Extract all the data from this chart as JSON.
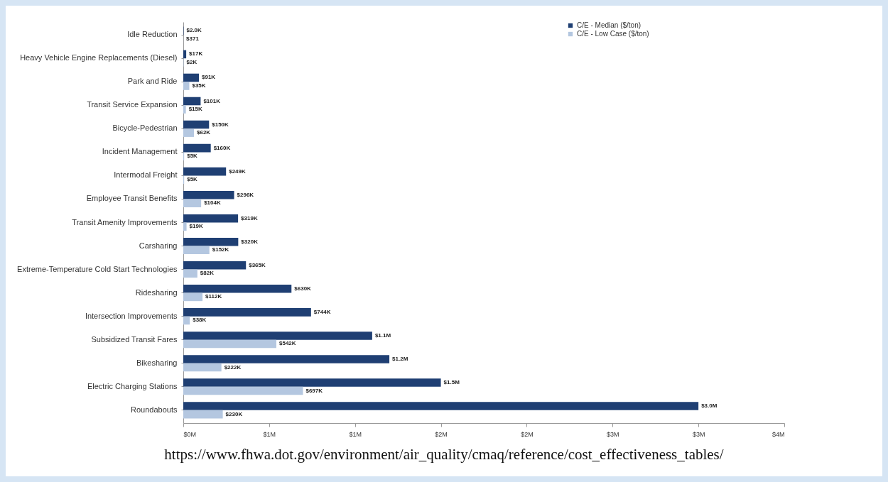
{
  "chart_data": {
    "type": "bar",
    "orientation": "horizontal",
    "categories": [
      "Idle Reduction",
      "Heavy Vehicle Engine Replacements (Diesel)",
      "Park and Ride",
      "Transit Service Expansion",
      "Bicycle-Pedestrian",
      "Incident Management",
      "Intermodal Freight",
      "Employee Transit Benefits",
      "Transit Amenity Improvements",
      "Carsharing",
      "Extreme-Temperature Cold Start Technologies",
      "Ridesharing",
      "Intersection Improvements",
      "Subsidized Transit Fares",
      "Bikesharing",
      "Electric Charging Stations",
      "Roundabouts"
    ],
    "series": [
      {
        "name": "C/E - Median ($/ton)",
        "color": "#1f3f73",
        "values": [
          2000,
          17000,
          91000,
          101000,
          150000,
          160000,
          249000,
          296000,
          319000,
          320000,
          365000,
          630000,
          744000,
          1100000,
          1200000,
          1500000,
          3000000
        ],
        "value_labels": [
          "$2.0K",
          "$17K",
          "$91K",
          "$101K",
          "$150K",
          "$160K",
          "$249K",
          "$296K",
          "$319K",
          "$320K",
          "$365K",
          "$630K",
          "$744K",
          "$1.1M",
          "$1.2M",
          "$1.5M",
          "$3.0M"
        ]
      },
      {
        "name": "C/E - Low Case ($/ton)",
        "color": "#b4c7e0",
        "values": [
          371,
          2000,
          35000,
          15000,
          62000,
          5000,
          5000,
          104000,
          19000,
          152000,
          82000,
          112000,
          38000,
          542000,
          222000,
          697000,
          230000
        ],
        "value_labels": [
          "$371",
          "$2K",
          "$35K",
          "$15K",
          "$62K",
          "$5K",
          "$5K",
          "$104K",
          "$19K",
          "$152K",
          "$82K",
          "$112K",
          "$38K",
          "$542K",
          "$222K",
          "$697K",
          "$230K"
        ]
      }
    ],
    "xlim": [
      0,
      3500000
    ],
    "xticks": [
      {
        "value": 0,
        "label": "$0M"
      },
      {
        "value": 500000,
        "label": "$1M"
      },
      {
        "value": 1000000,
        "label": "$1M"
      },
      {
        "value": 1500000,
        "label": "$2M"
      },
      {
        "value": 2000000,
        "label": "$2M"
      },
      {
        "value": 2500000,
        "label": "$3M"
      },
      {
        "value": 3000000,
        "label": "$3M"
      },
      {
        "value": 3500000,
        "label": "$4M"
      }
    ],
    "grid": false,
    "legend": "top right",
    "annotations": [
      "https://www.fhwa.dot.gov/environment/air_quality/cmaq/reference/cost_effectiveness_tables/"
    ]
  }
}
